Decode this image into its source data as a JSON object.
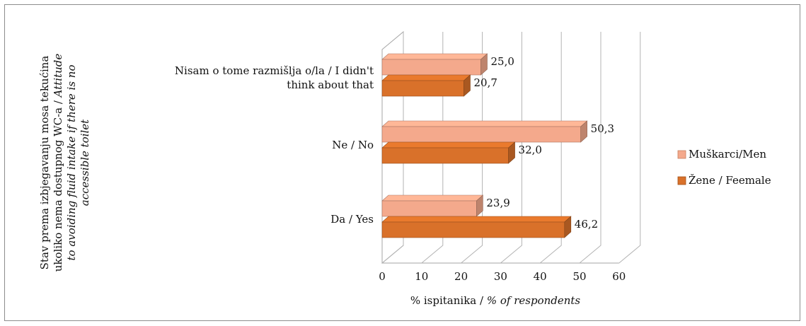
{
  "chart_data": {
    "type": "bar",
    "orientation": "horizontal",
    "style": "3d-clustered",
    "categories": [
      "Nisam o tome razmišlja o/la / I didn't think about that",
      "Ne / No",
      "Da / Yes"
    ],
    "category_lines": [
      [
        "Nisam o tome razmišlja o/la / I didn't",
        "think about that"
      ],
      [
        "Ne / No"
      ],
      [
        "Da / Yes"
      ]
    ],
    "series": [
      {
        "name": "Muškarci/Men",
        "color": "#f4a98c",
        "values": [
          25.0,
          50.3,
          23.9
        ],
        "labels": [
          "25,0",
          "50,3",
          "23,9"
        ]
      },
      {
        "name": "Žene / Feemale",
        "color": "#d9712a",
        "values": [
          20.7,
          32.0,
          46.2
        ],
        "labels": [
          "20,7",
          "32,0",
          "46,2"
        ]
      }
    ],
    "xlabel": {
      "plain": "% ispitanika /",
      "italic": " % of respondents"
    },
    "ylabel": {
      "line1": "Stav prema izbjegavanju mosa tekućina",
      "line2_plain": "ukoliko nema dostupnog WC-a / ",
      "line2_italic": "Attitude",
      "line3": "to avoiding fluid intake if there is no",
      "line4": "accessible toilet"
    },
    "xlim": [
      0,
      60
    ],
    "xticks": [
      "0",
      "10",
      "20",
      "30",
      "40",
      "50",
      "60"
    ],
    "grid": true,
    "legend_position": "right"
  }
}
